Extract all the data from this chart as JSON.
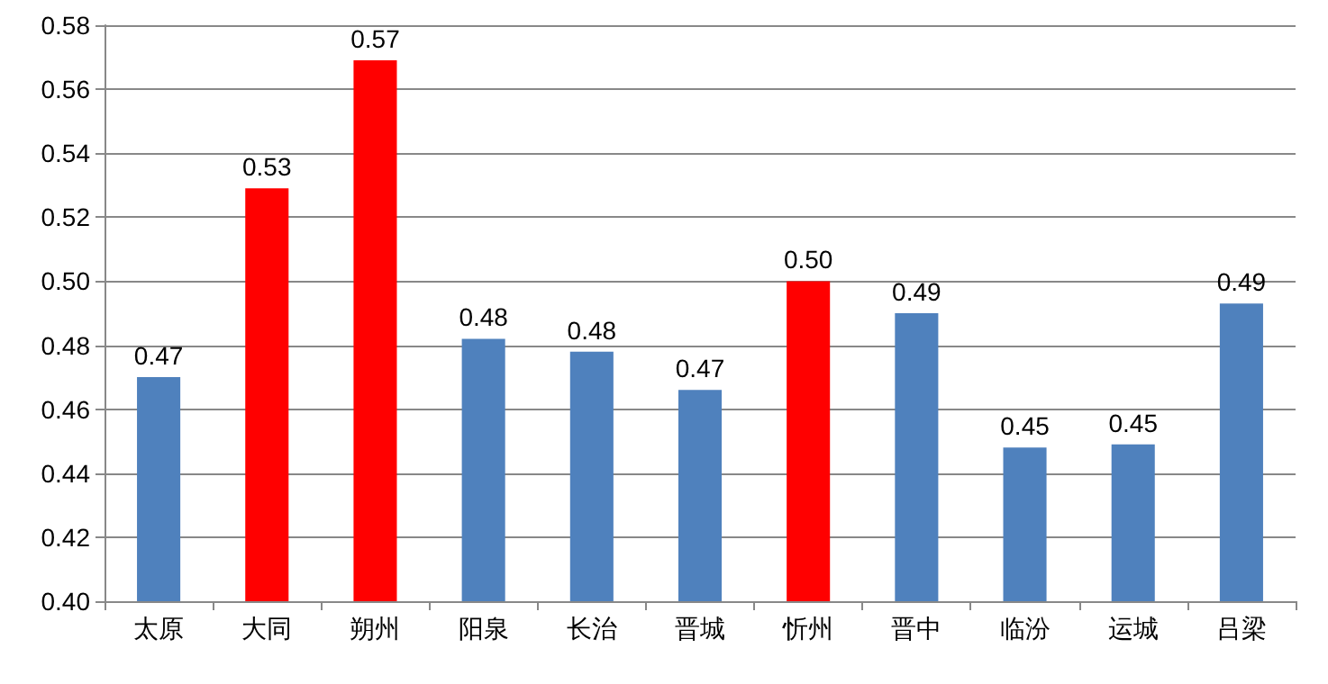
{
  "chart_data": {
    "type": "bar",
    "categories": [
      "太原",
      "大同",
      "朔州",
      "阳泉",
      "长治",
      "晋城",
      "忻州",
      "晋中",
      "临汾",
      "运城",
      "吕梁"
    ],
    "values": [
      0.47,
      0.529,
      0.569,
      0.482,
      0.478,
      0.466,
      0.5,
      0.49,
      0.448,
      0.449,
      0.493
    ],
    "value_labels": [
      "0.47",
      "0.53",
      "0.57",
      "0.48",
      "0.48",
      "0.47",
      "0.50",
      "0.49",
      "0.45",
      "0.45",
      "0.49"
    ],
    "colors": [
      "#4f81bd",
      "#ff0000",
      "#ff0000",
      "#4f81bd",
      "#4f81bd",
      "#4f81bd",
      "#ff0000",
      "#4f81bd",
      "#4f81bd",
      "#4f81bd",
      "#4f81bd"
    ],
    "ylim": [
      0.4,
      0.58
    ],
    "yticks": [
      {
        "value": 0.4,
        "label": "0.40"
      },
      {
        "value": 0.42,
        "label": "0.42"
      },
      {
        "value": 0.44,
        "label": "0.44"
      },
      {
        "value": 0.46,
        "label": "0.46"
      },
      {
        "value": 0.48,
        "label": "0.48"
      },
      {
        "value": 0.5,
        "label": "0.50"
      },
      {
        "value": 0.52,
        "label": "0.52"
      },
      {
        "value": 0.54,
        "label": "0.54"
      },
      {
        "value": 0.56,
        "label": "0.56"
      },
      {
        "value": 0.58,
        "label": "0.58"
      }
    ],
    "grid": "y"
  }
}
